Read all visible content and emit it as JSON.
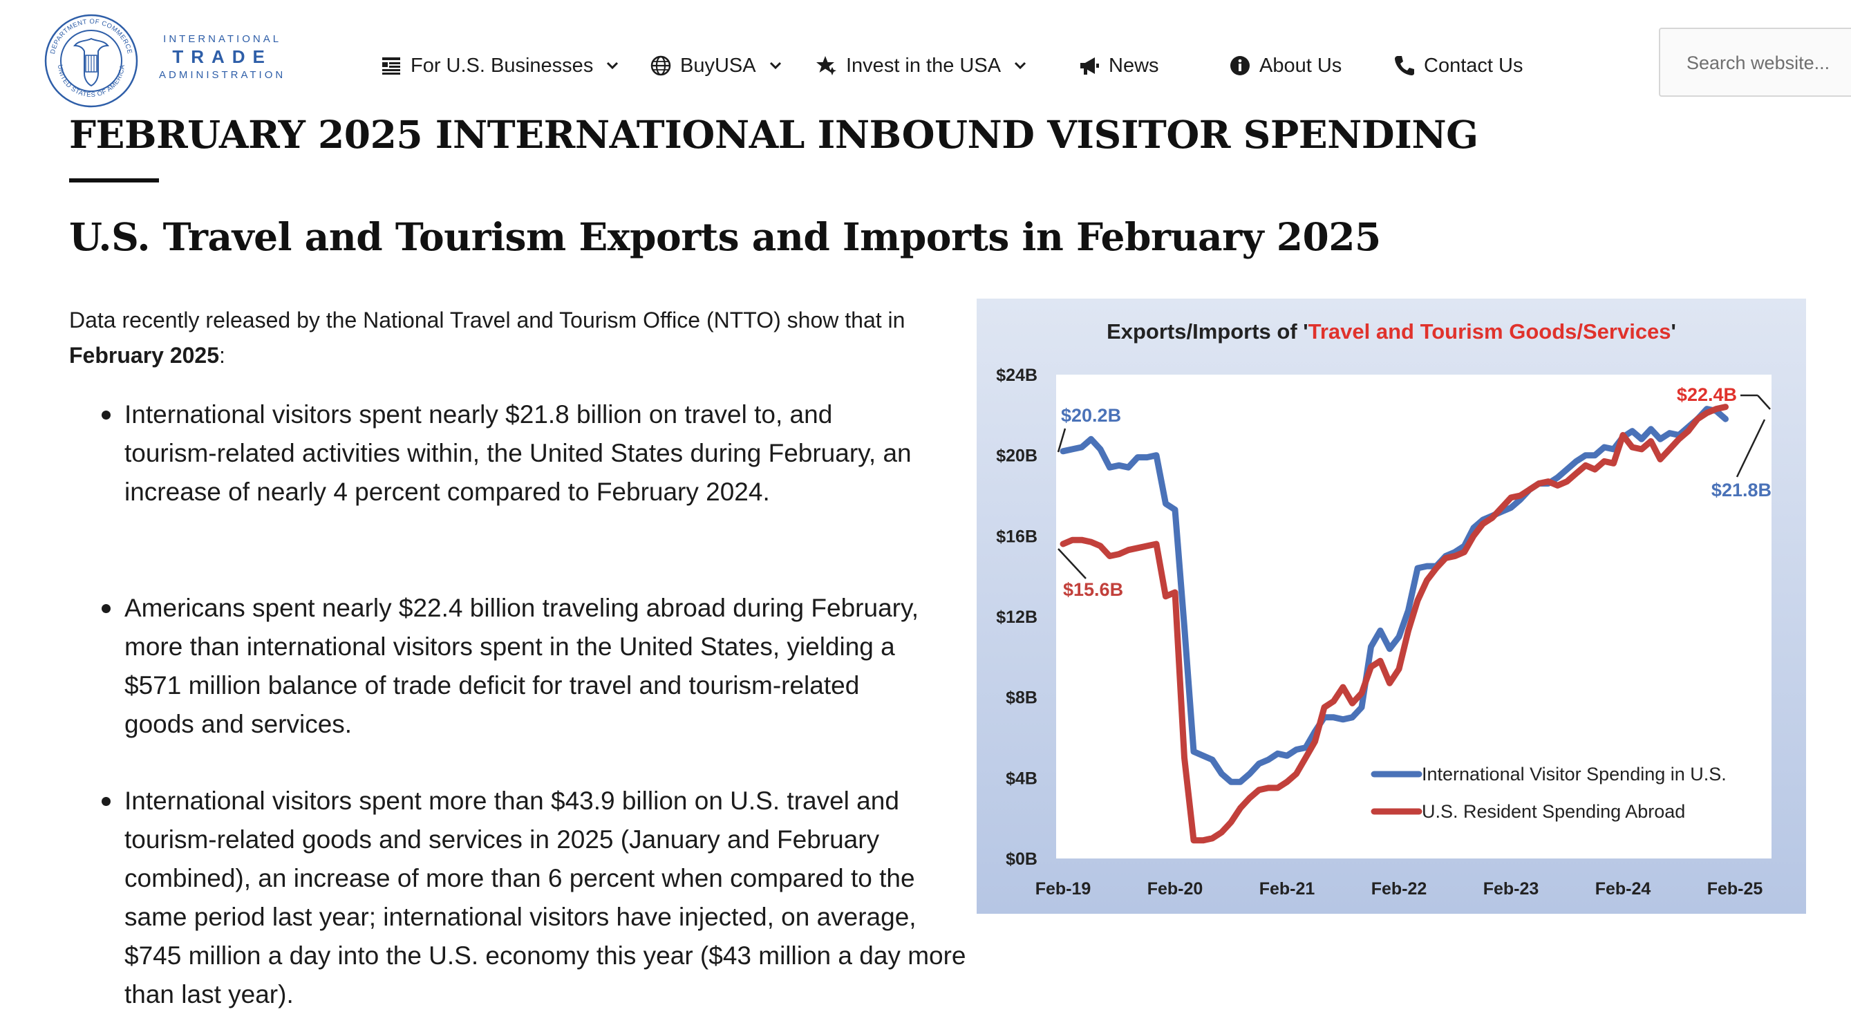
{
  "brand": {
    "line1": "INTERNATIONAL",
    "line2": "TRADE",
    "line3": "ADMINISTRATION",
    "seal_text": "DEPARTMENT OF COMMERCE · UNITED STATES OF AMERICA"
  },
  "nav": {
    "items": [
      {
        "label": "For U.S. Businesses",
        "icon": "list-icon",
        "dropdown": true
      },
      {
        "label": "BuyUSA",
        "icon": "globe-icon",
        "dropdown": true
      },
      {
        "label": "Invest in the USA",
        "icon": "star-icon",
        "dropdown": true
      },
      {
        "label": "News",
        "icon": "megaphone-icon",
        "dropdown": false
      },
      {
        "label": "About Us",
        "icon": "info-icon",
        "dropdown": false
      },
      {
        "label": "Contact Us",
        "icon": "phone-icon",
        "dropdown": false
      }
    ]
  },
  "search": {
    "placeholder": "Search website..."
  },
  "page": {
    "title": "FEBRUARY 2025 INTERNATIONAL INBOUND VISITOR SPENDING",
    "subtitle": "U.S. Travel and Tourism Exports and Imports in February 2025",
    "intro_a": "Data recently released by the National Travel and Tourism Office (NTTO) show that in ",
    "intro_bold": "February 2025",
    "intro_b": ":",
    "bullets": [
      "International visitors spent nearly $21.8 billion on travel to, and tourism-related activities within, the United States during February, an increase of nearly 4 percent compared to February 2024.",
      "Americans spent nearly $22.4 billion traveling abroad during February, more than international visitors spent in the United States, yielding a $571 million balance of trade deficit for travel and tourism-related goods and services.",
      "International visitors spent more than $43.9 billion on U.S. travel and tourism-related goods and services in 2025 (January and February combined), an increase of more than 6 percent when compared to the same period last year; international visitors have injected, on average, $745 million a day into the U.S. economy this year ($43 million a day more than last year)."
    ]
  },
  "chart_data": {
    "type": "line",
    "title_prefix": "Exports/Imports of '",
    "title_highlight": "Travel and Tourism Goods/Services",
    "title_suffix": "'",
    "x_ticks": [
      "Feb-19",
      "Feb-20",
      "Feb-21",
      "Feb-22",
      "Feb-23",
      "Feb-24",
      "Feb-25"
    ],
    "y_ticks": [
      "$0B",
      "$4B",
      "$8B",
      "$12B",
      "$16B",
      "$20B",
      "$24B"
    ],
    "ylim": [
      0,
      24
    ],
    "grid": false,
    "legend_position": "bottom-right",
    "colors": {
      "blue": "#4a72b8",
      "red": "#c2403b",
      "highlight": "#e0322c",
      "bg_top": "#dfe6f3",
      "bg_bottom": "#b6c6e4"
    },
    "series": [
      {
        "name": "International Visitor Spending in U.S.",
        "color": "#4a72b8",
        "values": [
          20.2,
          20.3,
          20.4,
          20.8,
          20.3,
          19.4,
          19.5,
          19.4,
          19.9,
          19.9,
          20.0,
          17.6,
          17.3,
          11.5,
          5.3,
          5.1,
          4.9,
          4.2,
          3.8,
          3.8,
          4.2,
          4.7,
          4.9,
          5.2,
          5.1,
          5.4,
          5.5,
          6.3,
          7.0,
          7.0,
          6.9,
          7.0,
          7.5,
          10.5,
          11.3,
          10.4,
          11.0,
          12.3,
          14.4,
          14.5,
          14.5,
          15.0,
          15.2,
          15.5,
          16.4,
          16.8,
          17.0,
          17.2,
          17.4,
          17.8,
          18.3,
          18.6,
          18.6,
          18.9,
          19.3,
          19.7,
          20.0,
          20.0,
          20.4,
          20.3,
          20.9,
          21.2,
          20.8,
          21.3,
          20.8,
          21.1,
          21.0,
          21.4,
          21.8,
          22.3,
          22.2,
          21.8
        ],
        "annotation": "$20.2B",
        "end_annotation": "$21.8B"
      },
      {
        "name": "U.S. Resident Spending Abroad",
        "color": "#c2403b",
        "values": [
          15.6,
          15.8,
          15.8,
          15.7,
          15.5,
          15.0,
          15.1,
          15.3,
          15.4,
          15.5,
          15.6,
          13.0,
          13.2,
          5.0,
          0.9,
          0.9,
          1.0,
          1.3,
          1.8,
          2.5,
          3.0,
          3.4,
          3.5,
          3.5,
          3.8,
          4.2,
          5.0,
          5.8,
          7.5,
          7.8,
          8.5,
          7.7,
          8.2,
          9.5,
          9.8,
          8.7,
          9.4,
          11.3,
          12.8,
          13.8,
          14.4,
          14.9,
          15.0,
          15.2,
          16.0,
          16.6,
          16.9,
          17.4,
          17.9,
          18.0,
          18.3,
          18.6,
          18.7,
          18.5,
          18.7,
          19.1,
          19.5,
          19.3,
          19.7,
          19.6,
          21.0,
          20.4,
          20.3,
          20.7,
          19.8,
          20.3,
          20.8,
          21.2,
          21.8,
          22.1,
          22.3,
          22.4
        ],
        "annotation": "$15.6B",
        "end_annotation": "$22.4B"
      }
    ]
  }
}
